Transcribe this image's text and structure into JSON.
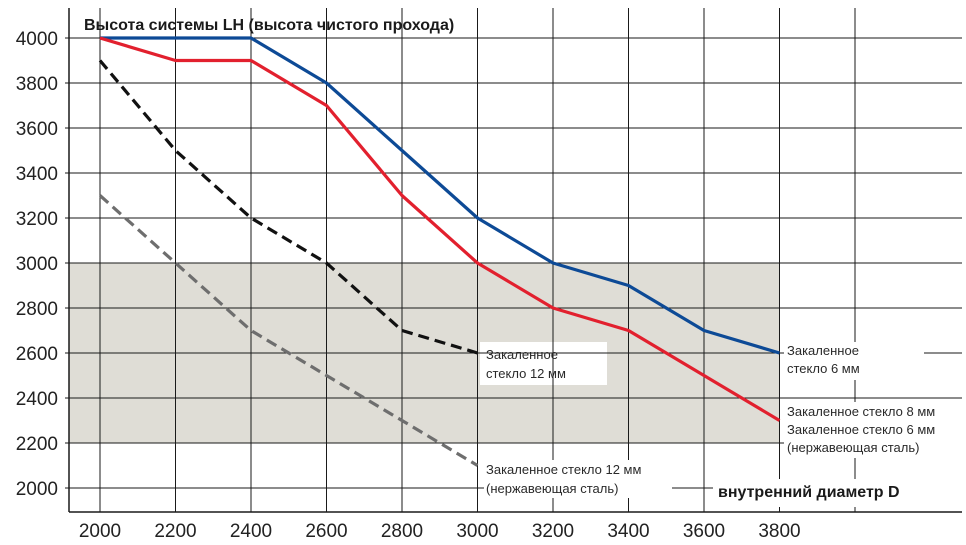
{
  "chart_data": {
    "type": "line",
    "title": "Высота системы LH (высота чистого прохода)",
    "xlabel": "внутренний диаметр D",
    "ylabel": "",
    "xlim": [
      2000,
      3800
    ],
    "ylim": [
      1900,
      4000
    ],
    "x_ticks": [
      2000,
      2200,
      2400,
      2600,
      2800,
      3000,
      3200,
      3400,
      3600,
      3800
    ],
    "y_ticks": [
      2000,
      2200,
      2400,
      2600,
      2800,
      3000,
      3200,
      3400,
      3600,
      3800,
      4000
    ],
    "grid": true,
    "shaded_band": [
      2200,
      3000
    ],
    "series": [
      {
        "id": "blue",
        "color": "#0d4a96",
        "dashed": false,
        "x": [
          2000,
          2200,
          2400,
          2600,
          2800,
          3000,
          3200,
          3400,
          3600,
          3800
        ],
        "y": [
          4000,
          4000,
          4000,
          3800,
          3500,
          3200,
          3000,
          2900,
          2700,
          2600
        ],
        "label_lines": [
          "Закаленное",
          "стекло 6 мм"
        ]
      },
      {
        "id": "red",
        "color": "#e2202e",
        "dashed": false,
        "x": [
          2000,
          2200,
          2400,
          2600,
          2800,
          3000,
          3200,
          3400,
          3600,
          3800
        ],
        "y": [
          4000,
          3900,
          3900,
          3700,
          3300,
          3000,
          2800,
          2700,
          2500,
          2300
        ],
        "label_lines": [
          "Закаленное стекло 8 мм",
          "Закаленное стекло 6 мм",
          "(нержавеющая сталь)"
        ]
      },
      {
        "id": "black-dashed",
        "color": "#111111",
        "dashed": true,
        "x": [
          2000,
          2200,
          2400,
          2600,
          2800,
          3000
        ],
        "y": [
          3900,
          3500,
          3200,
          3000,
          2700,
          2600
        ],
        "label_lines": [
          "Закаленное",
          "стекло 12 мм"
        ]
      },
      {
        "id": "gray-dashed",
        "color": "#6e6e6e",
        "dashed": true,
        "x": [
          2000,
          2200,
          2400,
          2600,
          2800,
          3000
        ],
        "y": [
          3300,
          3000,
          2700,
          2500,
          2300,
          2100
        ],
        "label_lines": [
          "Закаленное стекло 12 мм",
          "(нержавеющая сталь)"
        ]
      }
    ]
  }
}
